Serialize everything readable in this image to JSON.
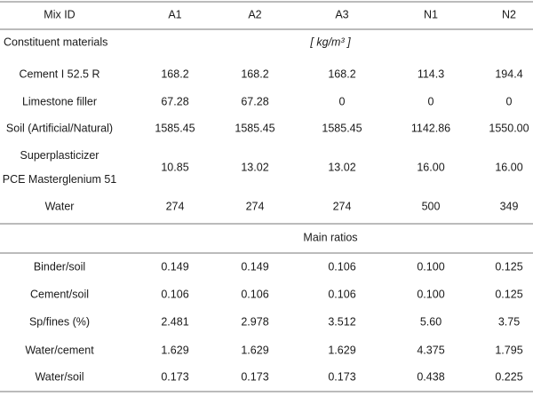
{
  "table": {
    "header": [
      "Mix ID",
      "A1",
      "A2",
      "A3",
      "N1",
      "N2"
    ],
    "sections": [
      {
        "title": "Constituent materials",
        "unit": "[ kg/m³ ]",
        "rows": [
          {
            "label": [
              "Cement I 52.5 R"
            ],
            "values": [
              "168.2",
              "168.2",
              "168.2",
              "114.3",
              "194.4"
            ]
          },
          {
            "label": [
              "Limestone filler"
            ],
            "values": [
              "67.28",
              "67.28",
              "0",
              "0",
              "0"
            ]
          },
          {
            "label": [
              "Soil (Artificial/Natural)"
            ],
            "values": [
              "1585.45",
              "1585.45",
              "1585.45",
              "1142.86",
              "1550.00"
            ]
          },
          {
            "label": [
              "Superplasticizer",
              "PCE Masterglenium 51"
            ],
            "values": [
              "10.85",
              "13.02",
              "13.02",
              "16.00",
              "16.00"
            ]
          },
          {
            "label": [
              "Water"
            ],
            "values": [
              "274",
              "274",
              "274",
              "500",
              "349"
            ]
          }
        ]
      },
      {
        "title": "Main ratios",
        "rows": [
          {
            "label": [
              "Binder/soil"
            ],
            "values": [
              "0.149",
              "0.149",
              "0.106",
              "0.100",
              "0.125"
            ]
          },
          {
            "label": [
              "Cement/soil"
            ],
            "values": [
              "0.106",
              "0.106",
              "0.106",
              "0.100",
              "0.125"
            ]
          },
          {
            "label": [
              "Sp/fines (%)"
            ],
            "values": [
              "2.481",
              "2.978",
              "3.512",
              "5.60",
              "3.75"
            ]
          },
          {
            "label": [
              "Water/cement"
            ],
            "values": [
              "1.629",
              "1.629",
              "1.629",
              "4.375",
              "1.795"
            ]
          },
          {
            "label": [
              "Water/soil"
            ],
            "values": [
              "0.173",
              "0.173",
              "0.173",
              "0.438",
              "0.225"
            ]
          }
        ]
      }
    ]
  }
}
